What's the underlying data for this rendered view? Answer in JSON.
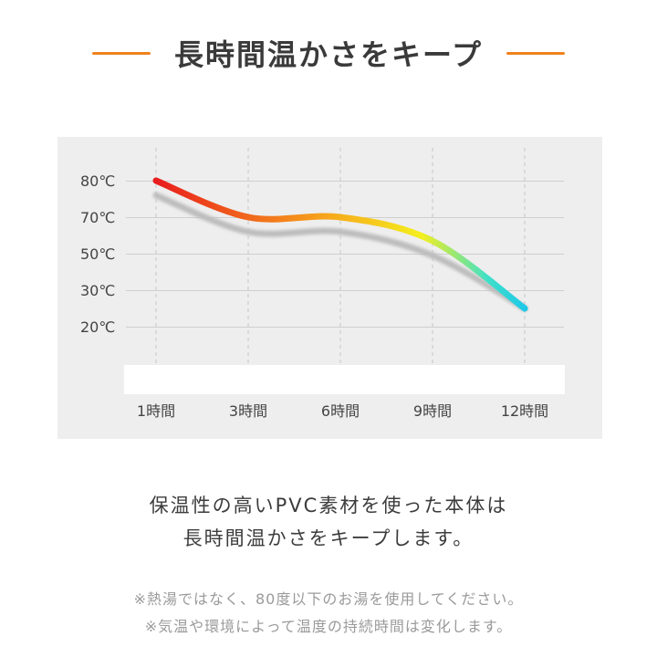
{
  "header": {
    "title": "長時間温かさをキープ",
    "accent_color": "#f0821e"
  },
  "chart_data": {
    "type": "line",
    "title": "",
    "xlabel": "",
    "ylabel": "",
    "x_categories": [
      "1時間",
      "3時間",
      "6時間",
      "9時間",
      "12時間"
    ],
    "y_ticks": [
      "80℃",
      "70℃",
      "50℃",
      "30℃",
      "20℃"
    ],
    "series": [
      {
        "points": [
          {
            "x": "1時間",
            "y": 80
          },
          {
            "x": "3時間",
            "y": 70
          },
          {
            "x": "6時間",
            "y": 70
          },
          {
            "x": "9時間",
            "y": 57
          },
          {
            "x": "12時間",
            "y": 25
          }
        ]
      }
    ],
    "grid": true,
    "gradient_colors": [
      "#e81d1d",
      "#f7a21b",
      "#f4ef1e",
      "#3fe0c8",
      "#1fc8e8"
    ]
  },
  "description": {
    "line1": "保温性の高いPVC素材を使った本体は",
    "line2": "長時間温かさをキープします。"
  },
  "notes": [
    "※熱湯ではなく、80度以下のお湯を使用してください。",
    "※気温や環境によって温度の持続時間は変化します。"
  ]
}
